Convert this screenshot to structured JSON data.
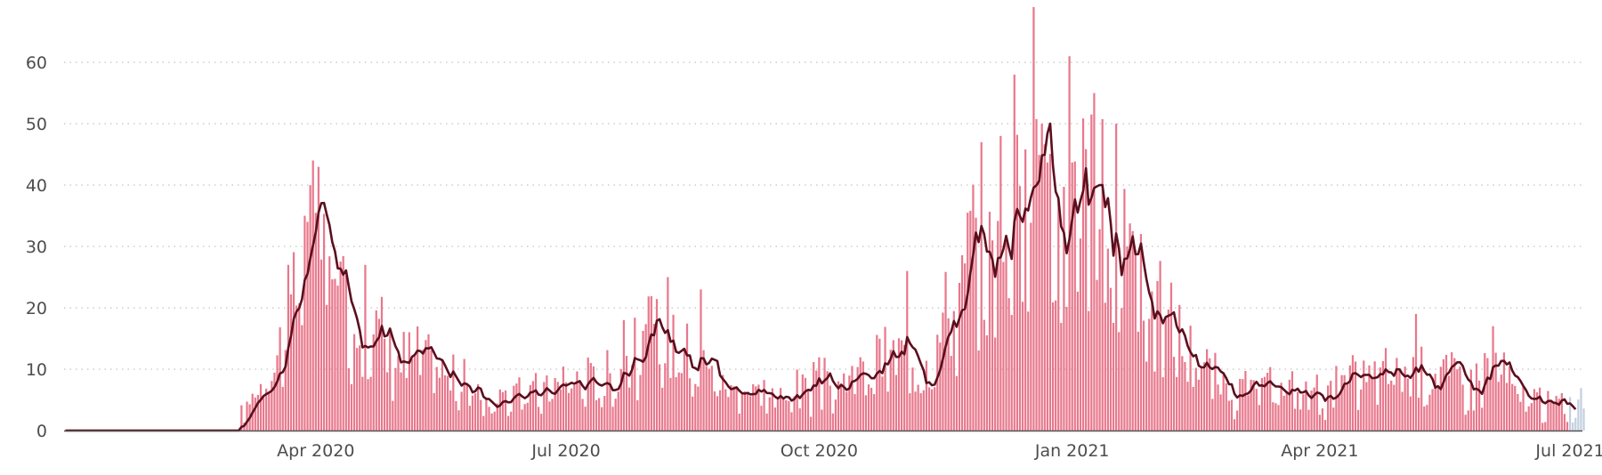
{
  "chart_data": {
    "type": "bar",
    "x_start": "2020-01-01",
    "x_end": "2021-07-06",
    "ylim": [
      0,
      69
    ],
    "y_ticks": [
      0,
      10,
      20,
      30,
      40,
      50,
      60
    ],
    "y_tick_labels": [
      "0",
      "10",
      "20",
      "30",
      "40",
      "50",
      "60"
    ],
    "x_ticks": [
      "2020-04-01",
      "2020-07-01",
      "2020-10-01",
      "2021-01-01",
      "2021-04-01",
      "2021-07-01"
    ],
    "x_tick_labels": [
      "Apr 2020",
      "Jul 2020",
      "Oct 2020",
      "Jan 2021",
      "Apr 2021",
      "Jul 2021"
    ],
    "grid": "horizontal dotted",
    "series": [
      {
        "kind": "daily bars",
        "color": "#e8788c",
        "estimated_profile": [
          [
            "2020-01-01",
            0
          ],
          [
            "2020-03-04",
            0
          ],
          [
            "2020-03-05",
            2
          ],
          [
            "2020-03-10",
            7
          ],
          [
            "2020-03-18",
            12
          ],
          [
            "2020-03-25",
            22
          ],
          [
            "2020-03-31",
            32
          ],
          [
            "2020-04-08",
            19
          ],
          [
            "2020-04-20",
            18
          ],
          [
            "2020-04-30",
            12
          ],
          [
            "2020-05-15",
            10
          ],
          [
            "2020-05-31",
            5
          ],
          [
            "2020-06-20",
            6
          ],
          [
            "2020-07-01",
            8
          ],
          [
            "2020-07-15",
            8
          ],
          [
            "2020-07-31",
            14
          ],
          [
            "2020-08-10",
            15
          ],
          [
            "2020-08-25",
            8
          ],
          [
            "2020-09-15",
            5
          ],
          [
            "2020-09-25",
            7
          ],
          [
            "2020-10-10",
            7
          ],
          [
            "2020-10-25",
            11
          ],
          [
            "2020-11-10",
            13
          ],
          [
            "2020-11-25",
            26
          ],
          [
            "2020-12-05",
            29
          ],
          [
            "2020-12-12",
            34
          ],
          [
            "2020-12-20",
            40
          ],
          [
            "2020-12-26",
            29
          ],
          [
            "2021-01-01",
            34
          ],
          [
            "2021-01-10",
            34
          ],
          [
            "2021-01-25",
            22
          ],
          [
            "2021-02-10",
            14
          ],
          [
            "2021-02-25",
            6
          ],
          [
            "2021-03-15",
            6
          ],
          [
            "2021-04-01",
            6
          ],
          [
            "2021-04-25",
            9
          ],
          [
            "2021-05-10",
            10
          ],
          [
            "2021-05-25",
            8
          ],
          [
            "2021-06-05",
            10
          ],
          [
            "2021-06-12",
            5
          ],
          [
            "2021-06-25",
            4
          ],
          [
            "2021-07-06",
            4
          ]
        ],
        "highlights": [
          [
            "2020-03-31",
            44
          ],
          [
            "2020-03-28",
            35
          ],
          [
            "2020-03-29",
            34
          ],
          [
            "2020-04-19",
            27
          ],
          [
            "2020-07-22",
            18
          ],
          [
            "2020-08-07",
            25
          ],
          [
            "2020-08-19",
            23
          ],
          [
            "2020-11-02",
            26
          ],
          [
            "2020-11-29",
            47
          ],
          [
            "2020-12-06",
            48
          ],
          [
            "2020-12-11",
            58
          ],
          [
            "2020-12-18",
            69
          ],
          [
            "2020-12-21",
            50
          ],
          [
            "2020-12-31",
            61
          ],
          [
            "2021-01-09",
            55
          ],
          [
            "2021-01-17",
            50
          ],
          [
            "2021-05-06",
            19
          ],
          [
            "2021-06-03",
            17
          ]
        ]
      },
      {
        "kind": "rolling average line",
        "color": "#5a0f1d"
      },
      {
        "kind": "incomplete recent days",
        "color": "#c3cfe0",
        "x_range": [
          "2021-07-01",
          "2021-07-06"
        ]
      }
    ]
  }
}
